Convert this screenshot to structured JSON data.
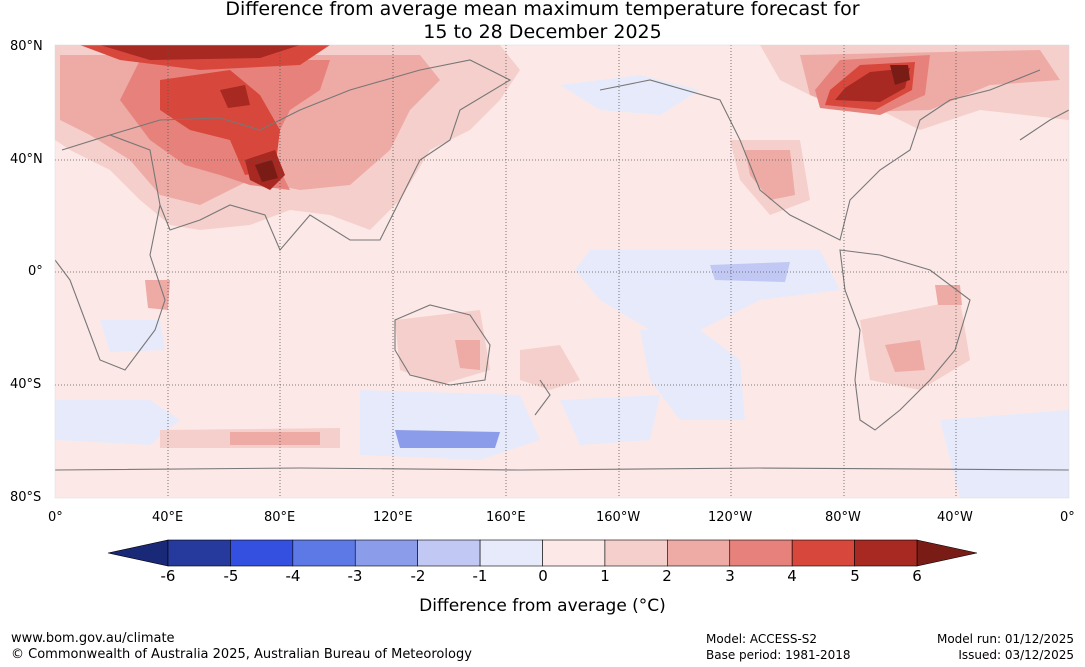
{
  "title": {
    "line1": "Difference from average mean maximum temperature forecast for",
    "line2": "15 to 28 December 2025"
  },
  "map": {
    "lat_labels": [
      "80°N",
      "40°N",
      "0°",
      "40°S",
      "80°S"
    ],
    "lon_labels": [
      "0°",
      "40°E",
      "80°E",
      "120°E",
      "160°E",
      "160°W",
      "120°W",
      "80°W",
      "40°W",
      "0°"
    ],
    "background_color": "#fce9e7"
  },
  "colorbar": {
    "ticks": [
      "-6",
      "-5",
      "-4",
      "-3",
      "-2",
      "-1",
      "0",
      "1",
      "2",
      "3",
      "4",
      "5",
      "6"
    ],
    "colors": [
      "#263a9e",
      "#3350e0",
      "#5c79e6",
      "#8a9cea",
      "#c0c8f3",
      "#e6eafb",
      "#fce9e7",
      "#f5cfcb",
      "#eeaaa4",
      "#e6827b",
      "#d8473c",
      "#a82822"
    ],
    "under_color": "#1a2878",
    "over_color": "#7a1c16",
    "label": "Difference from average (°C)"
  },
  "footer": {
    "website": "www.bom.gov.au/climate",
    "copyright": "© Commonwealth of Australia 2025, Australian Bureau of Meteorology",
    "model": "Model: ACCESS-S2",
    "base_period": "Base period: 1981-2018",
    "model_run": "Model run: 01/12/2025",
    "issued": "Issued: 03/12/2025"
  }
}
